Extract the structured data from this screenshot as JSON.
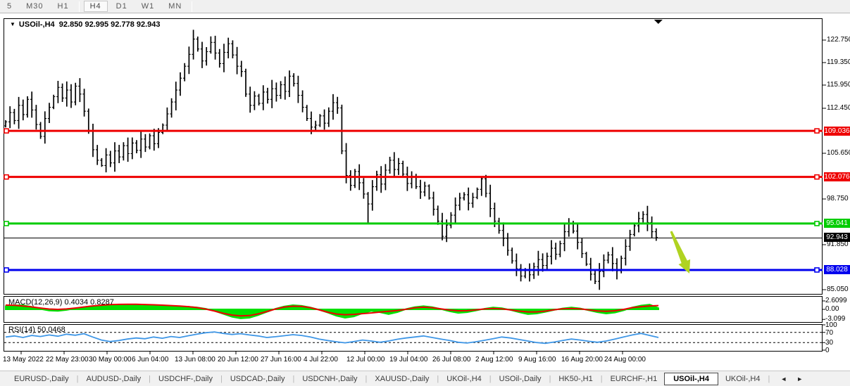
{
  "toolbar": {
    "timeframes": [
      {
        "label": "5",
        "active": false
      },
      {
        "label": "M30",
        "active": false
      },
      {
        "label": "H1",
        "active": false
      },
      {
        "label": "H4",
        "active": true
      },
      {
        "label": "D1",
        "active": false
      },
      {
        "label": "W1",
        "active": false
      },
      {
        "label": "MN",
        "active": false
      }
    ]
  },
  "chart": {
    "symbol_period": "USOil-,H4",
    "ohlc_text": "92.850 92.995 92.778 92.943",
    "dropdown_icon": "▼",
    "bar_marker_icon": "▼"
  },
  "price_axis": {
    "ticks": [
      {
        "label": "122.750",
        "value": 122.75
      },
      {
        "label": "119.350",
        "value": 119.35
      },
      {
        "label": "115.950",
        "value": 115.95
      },
      {
        "label": "112.450",
        "value": 112.45
      },
      {
        "label": "105.650",
        "value": 105.65
      },
      {
        "label": "98.750",
        "value": 98.75
      },
      {
        "label": "91.850",
        "value": 91.85
      },
      {
        "label": "85.050",
        "value": 85.05
      }
    ]
  },
  "levels": [
    {
      "name": "resistance-line-1",
      "value": 109.036,
      "label": "109.036",
      "color": "#ee0000",
      "width": 3,
      "handles": true
    },
    {
      "name": "resistance-line-2",
      "value": 102.076,
      "label": "102.076",
      "color": "#ee0000",
      "width": 3,
      "handles": true
    },
    {
      "name": "support-line-green",
      "value": 95.041,
      "label": "95.041",
      "color": "#00cc00",
      "width": 3,
      "handles": true
    },
    {
      "name": "trend-line-black",
      "value": 92.85,
      "label": "",
      "color": "#000000",
      "width": 1,
      "handles": false
    },
    {
      "name": "support-line-blue",
      "value": 88.028,
      "label": "88.028",
      "color": "#0000ee",
      "width": 3,
      "handles": true
    }
  ],
  "current_price": {
    "label": "92.943",
    "value": 92.943,
    "bg": "#000000"
  },
  "arrow": {
    "name": "sell-signal-arrow",
    "color": "#b0d321",
    "direction": "down-right"
  },
  "chart_data": {
    "type": "bar",
    "style": "ohlc-candles",
    "title": "USOil-,H4",
    "ylabel": "price",
    "ylim": [
      84.2,
      124.8
    ],
    "x_start_label": "13 May 2022",
    "x_end_label": "24 Aug 00:00",
    "closes": [
      110.4,
      111.8,
      110.6,
      112.9,
      111.5,
      113.8,
      112.2,
      110.0,
      108.2,
      110.9,
      112.6,
      114.2,
      115.6,
      114.0,
      115.2,
      113.4,
      115.8,
      114.6,
      112.0,
      109.0,
      106.2,
      104.6,
      103.8,
      105.4,
      104.2,
      106.0,
      105.1,
      106.8,
      105.6,
      107.2,
      106.1,
      107.8,
      106.6,
      108.3,
      107.1,
      108.8,
      109.9,
      111.6,
      113.4,
      115.2,
      117.0,
      118.8,
      120.6,
      122.9,
      121.4,
      119.6,
      121.0,
      122.4,
      120.8,
      119.2,
      120.9,
      122.2,
      120.5,
      118.8,
      118.0,
      114.6,
      112.9,
      114.3,
      113.2,
      114.9,
      113.8,
      115.4,
      114.4,
      116.0,
      115.0,
      117.3,
      116.2,
      114.4,
      112.6,
      110.9,
      109.6,
      109.9,
      111.3,
      110.2,
      112.0,
      113.3,
      112.5,
      106.0,
      102.3,
      100.8,
      102.9,
      101.2,
      99.5,
      98.0,
      100.6,
      102.4,
      101.0,
      103.1,
      104.6,
      103.2,
      104.1,
      102.5,
      101.1,
      102.2,
      100.6,
      99.8,
      100.7,
      98.9,
      97.2,
      95.4,
      93.1,
      94.8,
      96.3,
      97.8,
      98.9,
      99.4,
      98.1,
      99.0,
      100.2,
      101.8,
      99.6,
      97.3,
      95.4,
      94.0,
      92.8,
      91.0,
      89.4,
      88.2,
      87.1,
      88.0,
      87.3,
      88.5,
      89.6,
      88.7,
      90.1,
      91.3,
      90.4,
      92.0,
      93.8,
      95.1,
      93.9,
      92.2,
      90.5,
      88.9,
      87.4,
      86.3,
      87.8,
      89.5,
      90.3,
      89.0,
      87.9,
      89.8,
      91.6,
      93.4,
      94.7,
      95.8,
      96.4,
      95.2,
      93.8,
      92.943
    ],
    "wick_highs": {
      "43": 124.3,
      "47": 123.3,
      "109": 102.0,
      "146": 96.9
    },
    "wick_lows": {
      "22": 103.6,
      "83": 95.1,
      "100": 92.5,
      "118": 86.3,
      "135": 85.9,
      "140": 86.6
    }
  },
  "indicators": {
    "macd": {
      "label": "MACD(12,26,9) 0.4034 0.8287",
      "axis": [
        {
          "label": "2.6099",
          "value": 2.6099
        },
        {
          "label": "0.00",
          "value": 0.0
        },
        {
          "label": "-3.099",
          "value": -3.099
        }
      ],
      "hist_color": "#00e000",
      "signal_color": "#ee0000",
      "values": [
        1.0,
        1.25,
        1.3,
        0.8,
        0.1,
        -0.4,
        -0.5,
        -0.2,
        0.3,
        0.7,
        1.0,
        1.2,
        1.35,
        1.45,
        1.5,
        1.45,
        1.4,
        1.3,
        1.15,
        1.0,
        0.9,
        0.8,
        0.6,
        0.2,
        -0.5,
        -1.4,
        -2.3,
        -2.8,
        -2.6,
        -1.8,
        -0.8,
        0.2,
        0.9,
        1.3,
        1.1,
        0.6,
        -0.1,
        -1.0,
        -2.0,
        -2.6,
        -2.2,
        -1.2,
        -0.5,
        -0.9,
        -1.5,
        -0.9,
        0.1,
        0.7,
        1.0,
        0.7,
        0.1,
        -0.6,
        -1.1,
        -0.9,
        -0.4,
        0.2,
        0.6,
        0.4,
        -0.2,
        -0.9,
        -1.5,
        -1.3,
        -0.8,
        -0.2,
        0.3,
        0.6,
        0.3,
        -0.3,
        -0.9,
        -1.3,
        -1.0,
        -0.3,
        0.6,
        1.2,
        1.5,
        0.4
      ]
    },
    "rsi": {
      "label": "RSI(14) 50.0468",
      "axis": [
        {
          "label": "100",
          "value": 100
        },
        {
          "label": "70",
          "value": 70
        },
        {
          "label": "30",
          "value": 30
        },
        {
          "label": "0",
          "value": 0
        }
      ],
      "guide_levels": [
        70,
        30
      ],
      "color": "#3e96e6",
      "values": [
        52,
        56,
        50,
        58,
        54,
        60,
        55,
        63,
        59,
        65,
        52,
        40,
        34,
        38,
        44,
        48,
        45,
        52,
        47,
        54,
        50,
        57,
        63,
        69,
        72,
        66,
        62,
        65,
        60,
        56,
        50,
        53,
        57,
        61,
        58,
        52,
        44,
        38,
        33,
        29,
        34,
        40,
        36,
        31,
        36,
        43,
        48,
        52,
        56,
        50,
        44,
        38,
        31,
        28,
        33,
        39,
        45,
        52,
        48,
        42,
        36,
        30,
        27,
        32,
        38,
        44,
        40,
        35,
        31,
        36,
        44,
        52,
        60,
        66,
        58,
        50.0468
      ]
    }
  },
  "time_axis": {
    "labels": [
      "13 May 2022",
      "22 May 23:00",
      "30 May 00:00",
      "6 Jun 04:00",
      "13 Jun 08:00",
      "20 Jun 12:00",
      "27 Jun 16:00",
      "4 Jul 22:00",
      "12 Jul 00:00",
      "19 Jul 04:00",
      "26 Jul 08:00",
      "2 Aug 12:00",
      "9 Aug 16:00",
      "16 Aug 20:00",
      "24 Aug 00:00"
    ]
  },
  "tabs": {
    "items": [
      {
        "label": "EURUSD-,Daily",
        "active": false
      },
      {
        "label": "AUDUSD-,Daily",
        "active": false
      },
      {
        "label": "USDCHF-,Daily",
        "active": false
      },
      {
        "label": "USDCAD-,Daily",
        "active": false
      },
      {
        "label": "USDCNH-,Daily",
        "active": false
      },
      {
        "label": "XAUUSD-,Daily",
        "active": false
      },
      {
        "label": "UKOil-,H4",
        "active": false
      },
      {
        "label": "USOil-,Daily",
        "active": false
      },
      {
        "label": "HK50-,H1",
        "active": false
      },
      {
        "label": "EURCHF-,H1",
        "active": false
      },
      {
        "label": "USOil-,H4",
        "active": true
      },
      {
        "label": "UKOil-,H4",
        "active": false
      }
    ],
    "scroll_left": "◄",
    "scroll_right": "►"
  }
}
